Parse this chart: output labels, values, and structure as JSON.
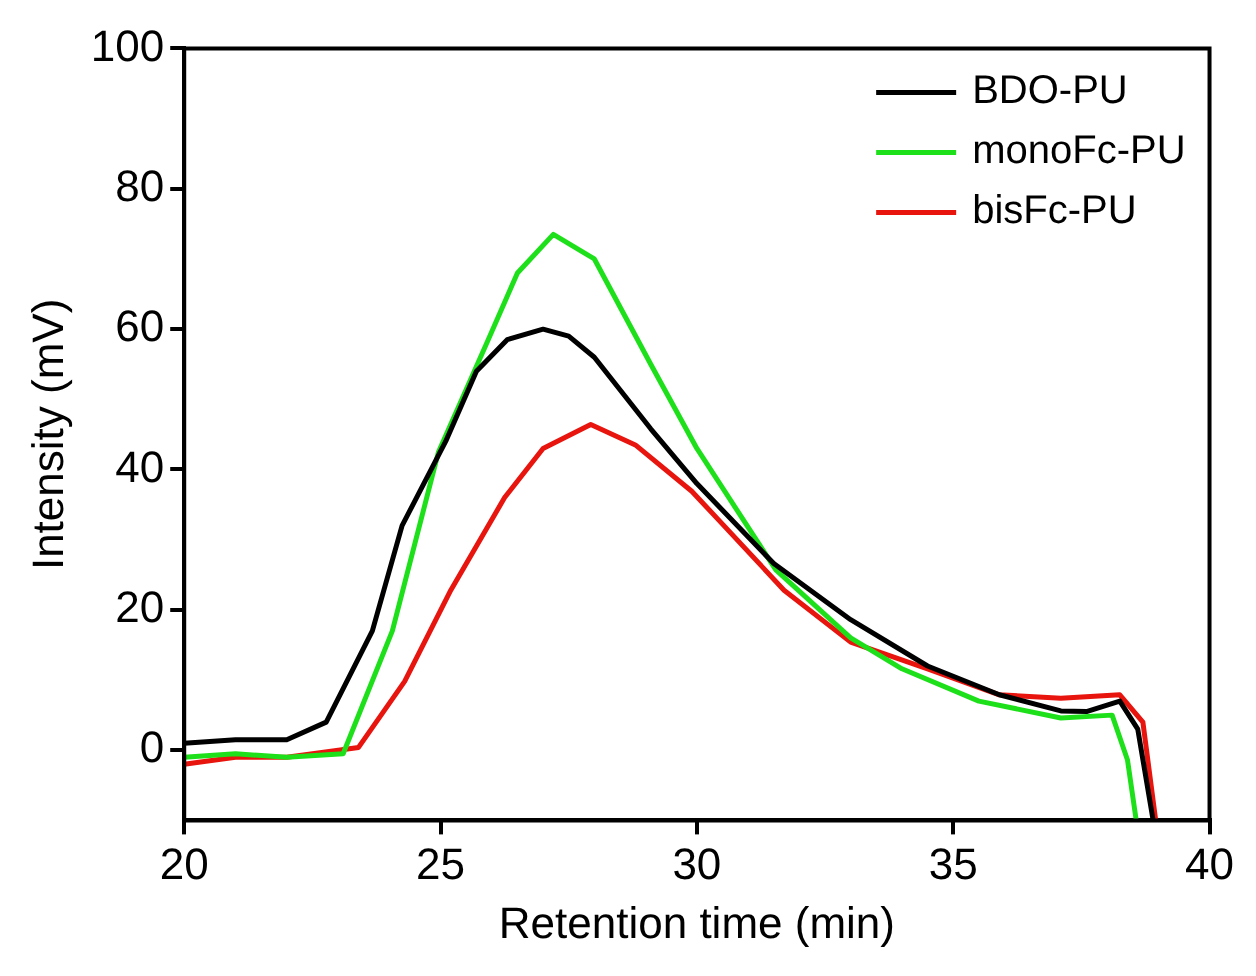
{
  "chart_data": {
    "type": "line",
    "xlabel": "Retention time (min)",
    "ylabel": "Intensity (mV)",
    "xlim": [
      20,
      40
    ],
    "xticks": [
      20,
      25,
      30,
      35,
      40
    ],
    "ylim": [
      -10,
      100
    ],
    "yticks": [
      0,
      20,
      40,
      60,
      80,
      100
    ],
    "legend": "top right",
    "grid": false,
    "marker": "none",
    "line_style": "solid",
    "series": [
      {
        "name": "BDO-PU",
        "color": "#000000",
        "x": [
          20,
          21,
          22,
          22.77,
          23.67,
          24.25,
          25.1,
          25.7,
          26.3,
          27,
          27.5,
          28,
          29.1,
          30,
          31.5,
          33,
          34.5,
          35.9,
          37.1,
          37.6,
          38.25,
          38.6,
          38.9
        ],
        "values": [
          1,
          1.5,
          1.5,
          4,
          17,
          32,
          44,
          54,
          58.5,
          60,
          59,
          56,
          45.8,
          38,
          26.6,
          18.6,
          12,
          7.9,
          5.6,
          5.5,
          7,
          3,
          -10
        ]
      },
      {
        "name": "monoFc-PU",
        "color": "#1ee01a",
        "x": [
          20,
          21,
          22,
          23.1,
          24.06,
          24.96,
          25.9,
          26.5,
          27.2,
          28,
          29.1,
          30,
          31.54,
          33,
          34,
          35.5,
          37.1,
          38.1,
          38.4,
          38.57
        ],
        "values": [
          -1,
          -0.5,
          -1,
          -0.5,
          17,
          42.5,
          58,
          68,
          73.5,
          70,
          55,
          43,
          25.7,
          16,
          11.6,
          7,
          4.6,
          5,
          -1.4,
          -10
        ]
      },
      {
        "name": "bisFc-PU",
        "color": "#e8140e",
        "x": [
          20,
          21,
          22,
          23.4,
          24.3,
          25.2,
          26.25,
          27,
          27.93,
          28.8,
          29.9,
          30.4,
          31.7,
          33,
          34.5,
          35.9,
          37.1,
          38.25,
          38.7,
          38.95
        ],
        "values": [
          -2,
          -1,
          -1,
          0.4,
          9.8,
          22.8,
          36,
          43,
          46.4,
          43.5,
          36.9,
          33,
          22.8,
          15.4,
          11.6,
          7.9,
          7.4,
          7.9,
          4,
          -10
        ]
      }
    ]
  }
}
